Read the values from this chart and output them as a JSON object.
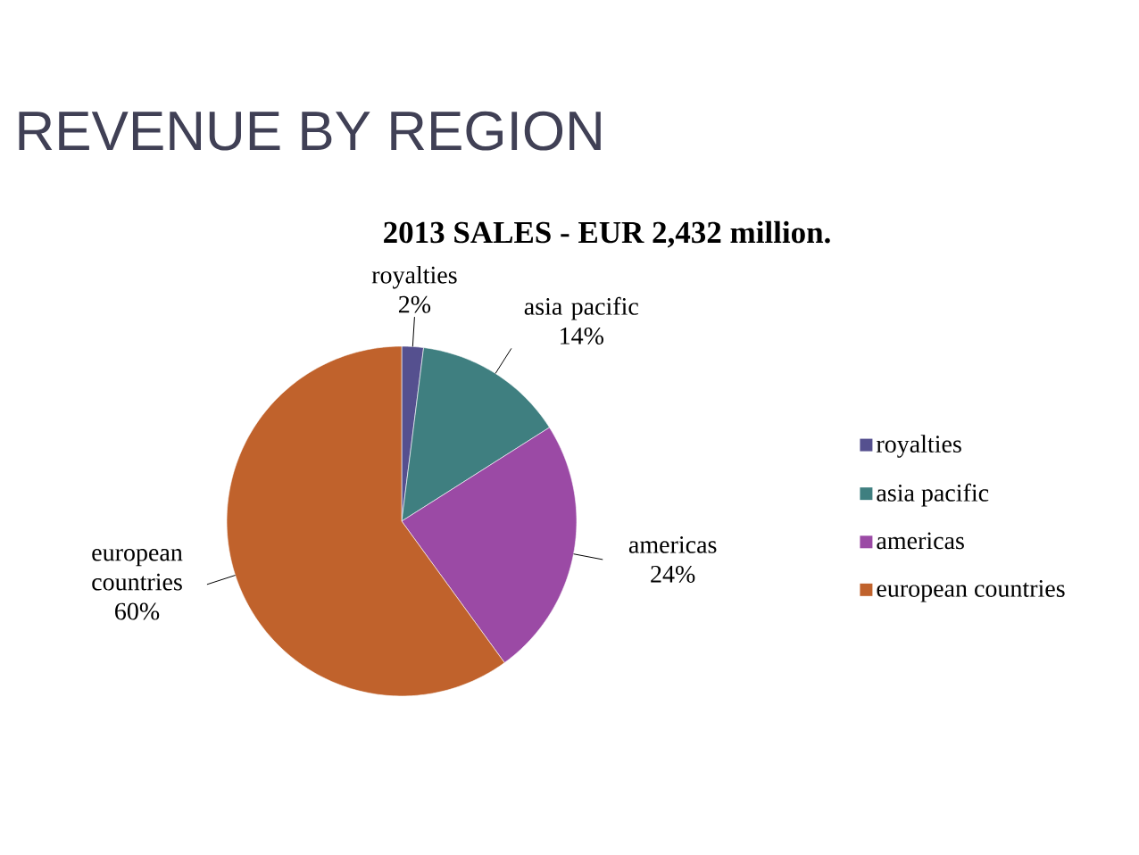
{
  "chart_data": {
    "type": "pie",
    "title": "REVENUE BY REGION",
    "subtitle": "2013 SALES - EUR 2,432 million.",
    "categories": [
      "royalties",
      "asia pacific",
      "americas",
      "european countries"
    ],
    "values": [
      2,
      14,
      24,
      60
    ],
    "value_labels": [
      "2%",
      "14%",
      "24%",
      "60%"
    ],
    "colors": [
      "#55508f",
      "#3f7f80",
      "#9b4aa5",
      "#c0622c"
    ],
    "legend": "right"
  }
}
